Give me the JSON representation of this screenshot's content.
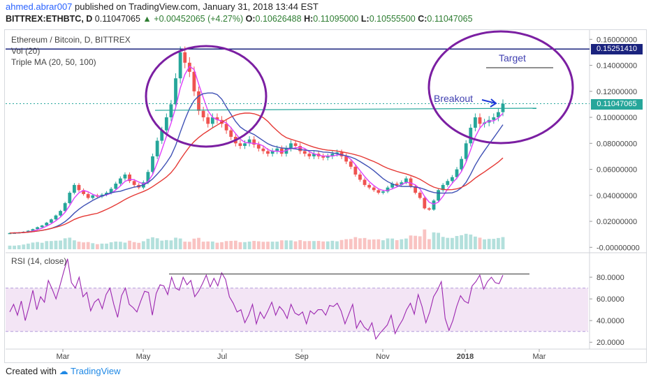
{
  "header": {
    "user": "ahmed.abrar007",
    "published": "published on TradingView.com, January 31, 2018 13:44 EST",
    "symbol": "BITTREX:ETHBTC, D",
    "last": "0.11047065",
    "change": "+0.00452065 (+4.27%)",
    "o_label": "O:",
    "o": "0.10626488",
    "h_label": "H:",
    "h": "0.11095000",
    "l_label": "L:",
    "l": "0.10555500",
    "c_label": "C:",
    "c": "0.11047065"
  },
  "price_pane": {
    "title": "Ethereum / Bitcoin, D, BITTREX",
    "vol_label": "Vol (20)",
    "ma_label": "Triple MA (20, 50, 100)"
  },
  "rsi_pane": {
    "title": "RSI (14, close)"
  },
  "footer": {
    "created_with": "Created with",
    "brand": "TradingView"
  },
  "colors": {
    "up": "#26a69a",
    "down": "#ef5350",
    "ma20": "#e040fb",
    "ma50": "#3f51b5",
    "ma100": "#e53935",
    "annotation": "#7b1fa2",
    "target_line": "#1a237e",
    "last_price": "#26a69a",
    "rsi": "#9c27b0",
    "rsi_band": "#f3e5f5"
  },
  "chart_data": [
    {
      "type": "candlestick",
      "title": "Ethereum / Bitcoin, D, BITTREX",
      "x_ticks": [
        "Mar",
        "May",
        "Jul",
        "Sep",
        "Nov",
        "2018",
        "Mar"
      ],
      "y_ticks": [
        "0.16000000",
        "0.14000000",
        "0.12000000",
        "0.10000000",
        "0.08000000",
        "0.06000000",
        "0.04000000",
        "0.02000000",
        "-0.00000000"
      ],
      "ylim": [
        -0.002,
        0.165
      ],
      "close_series": [
        0.011,
        0.0112,
        0.0115,
        0.012,
        0.0128,
        0.014,
        0.0155,
        0.0168,
        0.019,
        0.0215,
        0.0245,
        0.028,
        0.034,
        0.042,
        0.048,
        0.044,
        0.041,
        0.038,
        0.04,
        0.039,
        0.0405,
        0.042,
        0.045,
        0.049,
        0.053,
        0.056,
        0.051,
        0.048,
        0.046,
        0.05,
        0.058,
        0.07,
        0.082,
        0.09,
        0.1,
        0.11,
        0.13,
        0.15,
        0.142,
        0.135,
        0.12,
        0.105,
        0.1,
        0.095,
        0.1,
        0.098,
        0.095,
        0.09,
        0.085,
        0.08,
        0.078,
        0.08,
        0.083,
        0.079,
        0.076,
        0.074,
        0.072,
        0.074,
        0.076,
        0.072,
        0.076,
        0.08,
        0.078,
        0.074,
        0.072,
        0.07,
        0.072,
        0.07,
        0.069,
        0.07,
        0.072,
        0.073,
        0.07,
        0.066,
        0.062,
        0.056,
        0.052,
        0.048,
        0.046,
        0.044,
        0.042,
        0.043,
        0.046,
        0.049,
        0.048,
        0.05,
        0.053,
        0.047,
        0.042,
        0.038,
        0.03,
        0.029,
        0.036,
        0.044,
        0.048,
        0.051,
        0.054,
        0.06,
        0.068,
        0.08,
        0.092,
        0.1,
        0.095,
        0.096,
        0.098,
        0.1,
        0.104,
        0.1105
      ],
      "target_price": 0.1525141,
      "last_price": 0.11047065,
      "annotations": [
        "Target",
        "Breakout"
      ]
    },
    {
      "type": "line",
      "title": "RSI (14, close)",
      "y_ticks": [
        "80.0000",
        "60.0000",
        "40.0000",
        "20.0000"
      ],
      "ylim": [
        15,
        100
      ],
      "band": [
        30,
        70
      ],
      "values": [
        48,
        55,
        45,
        58,
        40,
        53,
        68,
        50,
        62,
        57,
        77,
        69,
        60,
        72,
        85,
        97,
        75,
        70,
        80,
        62,
        66,
        49,
        57,
        60,
        51,
        64,
        70,
        55,
        43,
        63,
        70,
        55,
        52,
        48,
        58,
        67,
        66,
        45,
        65,
        73,
        72,
        64,
        80,
        70,
        68,
        80,
        73,
        77,
        62,
        67,
        74,
        82,
        71,
        79,
        72,
        84,
        78,
        62,
        56,
        48,
        50,
        38,
        45,
        55,
        37,
        48,
        42,
        49,
        57,
        45,
        53,
        49,
        42,
        55,
        47,
        45,
        48,
        37,
        49,
        46,
        50,
        50,
        45,
        54,
        53,
        56,
        49,
        37,
        46,
        55,
        33,
        40,
        34,
        31,
        38,
        23,
        28,
        32,
        36,
        45,
        28,
        35,
        41,
        50,
        56,
        46,
        64,
        53,
        38,
        48,
        62,
        68,
        76,
        42,
        31,
        40,
        53,
        63,
        58,
        56,
        72,
        76,
        82,
        69,
        76,
        80,
        75,
        74,
        82
      ],
      "resistance": 83
    }
  ]
}
